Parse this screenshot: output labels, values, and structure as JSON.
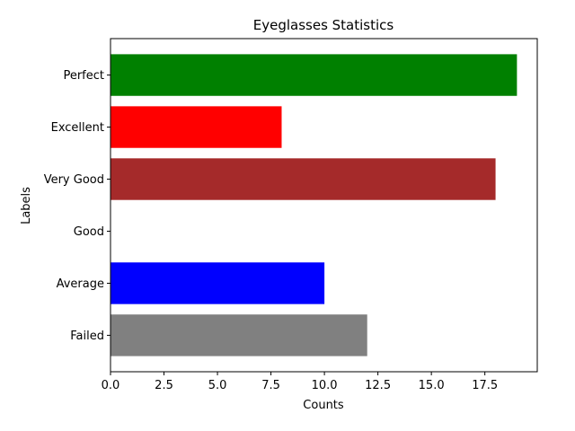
{
  "chart_data": {
    "type": "bar",
    "orientation": "horizontal",
    "title": "Eyeglasses Statistics",
    "xlabel": "Counts",
    "ylabel": "Labels",
    "categories": [
      "Failed",
      "Average",
      "Good",
      "Very Good",
      "Excellent",
      "Perfect"
    ],
    "values": [
      12,
      10,
      0,
      18,
      8,
      19
    ],
    "colors": [
      "#808080",
      "#0000ff",
      "#ffffff",
      "#a52a2a",
      "#ff0000",
      "#008000"
    ],
    "xlim": [
      0,
      19.95
    ],
    "xticks": [
      0,
      2.5,
      5,
      7.5,
      10,
      12.5,
      15,
      17.5
    ],
    "xtick_labels": [
      "0.0",
      "2.5",
      "5.0",
      "7.5",
      "10.0",
      "12.5",
      "15.0",
      "17.5"
    ],
    "grid": false
  }
}
